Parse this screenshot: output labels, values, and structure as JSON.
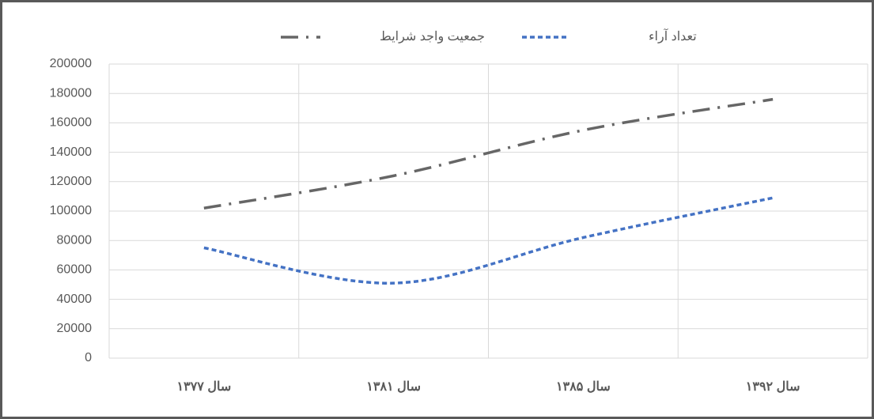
{
  "chart_data": {
    "type": "line",
    "categories": [
      "سال ۱۳۷۷",
      "سال ۱۳۸۱",
      "سال ۱۳۸۵",
      "سال ۱۳۹۲"
    ],
    "series": [
      {
        "name": "تعداد آراء",
        "color": "#4472c4",
        "dash": "6,4",
        "values": [
          75000,
          51000,
          82000,
          109000
        ]
      },
      {
        "name": "جمعیت واجد شرایط",
        "color": "#666666",
        "dash": "22,10,3,10",
        "values": [
          102000,
          124000,
          155000,
          176000
        ]
      }
    ],
    "ylim": [
      0,
      200000
    ],
    "yticks": [
      0,
      20000,
      40000,
      60000,
      80000,
      100000,
      120000,
      140000,
      160000,
      180000,
      200000
    ],
    "grid": true,
    "smooth": true,
    "legend": "top"
  }
}
